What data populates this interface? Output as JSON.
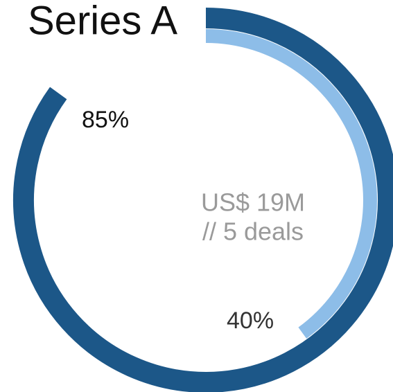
{
  "chart_data": {
    "type": "radial",
    "title": "Series A",
    "values": [
      85,
      40
    ],
    "value_labels": [
      "85%",
      "40%"
    ],
    "colors": [
      "#1c5788",
      "#8dbde8"
    ],
    "center_text": [
      "US$ 19M",
      "// 5 deals"
    ]
  }
}
